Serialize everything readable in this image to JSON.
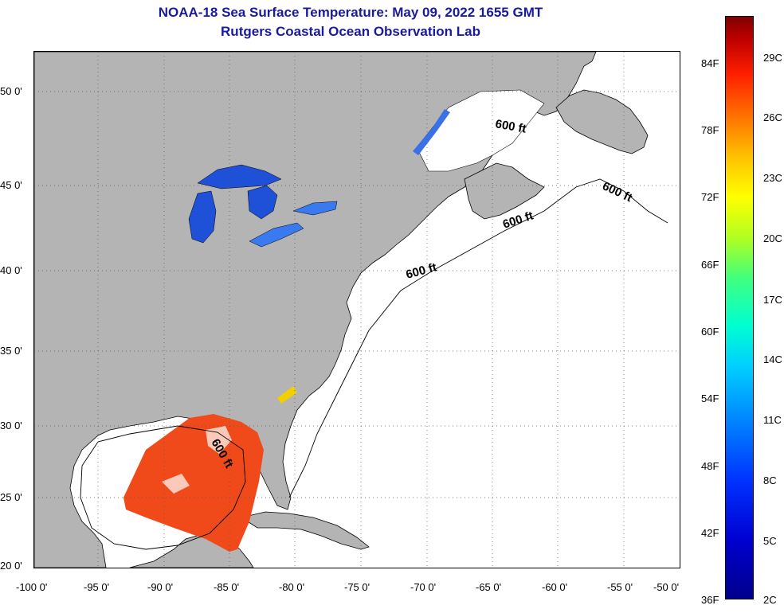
{
  "title": {
    "line1": "NOAA-18 Sea Surface Temperature:  May 09, 2022 1655 GMT",
    "line2": "Rutgers Coastal Ocean Observation Lab"
  },
  "axes": {
    "latitude_labels": [
      "50 0'",
      "45 0'",
      "40 0'",
      "35 0'",
      "30 0'",
      "25 0'",
      "20 0'"
    ],
    "longitude_labels": [
      "-100 0'",
      "-95 0'",
      "-90 0'",
      "-85 0'",
      "-80 0'",
      "-75 0'",
      "-70 0'",
      "-65 0'",
      "-60 0'",
      "-55 0'",
      "-50 0'"
    ]
  },
  "isobath_label": "600 ft",
  "colorbar": {
    "fahrenheit": [
      "84F",
      "78F",
      "72F",
      "66F",
      "60F",
      "54F",
      "48F",
      "42F",
      "36F"
    ],
    "celsius": [
      "29C",
      "26C",
      "23C",
      "20C",
      "17C",
      "14C",
      "11C",
      "8C",
      "5C",
      "2C"
    ]
  },
  "colors": {
    "title": "#1a1aa0",
    "land": "#b4b4b4",
    "ocean": "#ffffff",
    "sst_gulf": "#f04a1a",
    "lakes": "#1e50d8"
  }
}
